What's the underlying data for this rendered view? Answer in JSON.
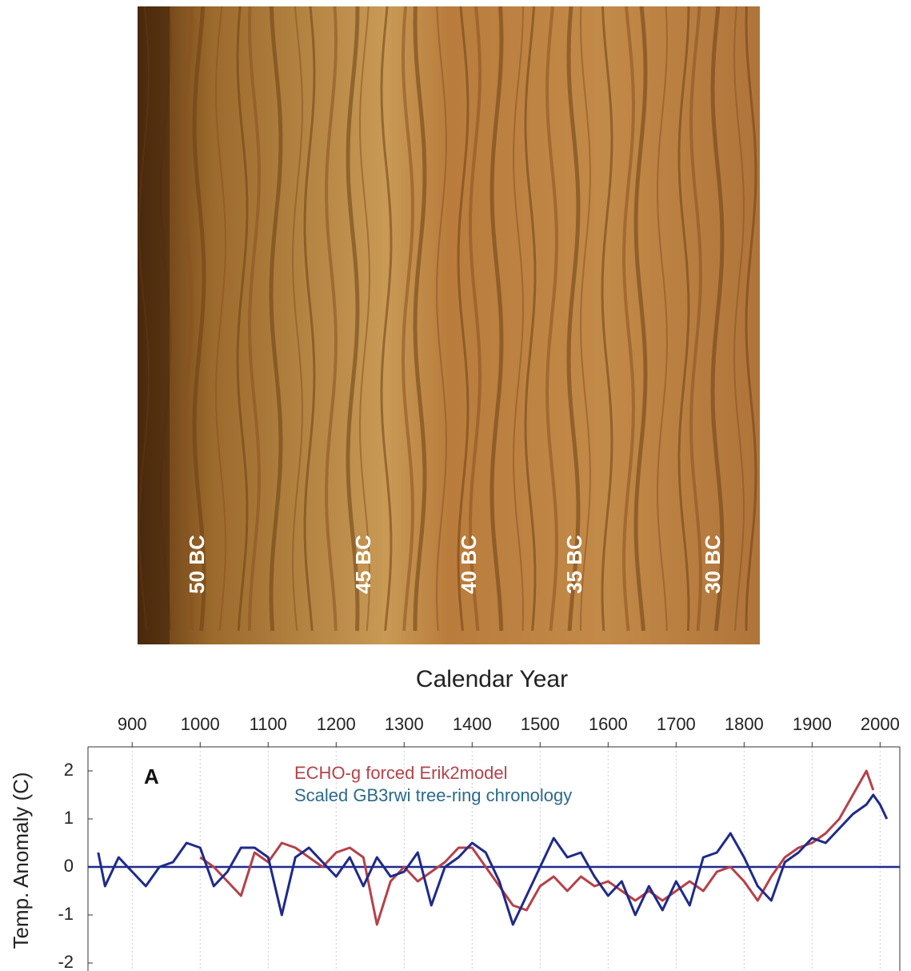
{
  "photo": {
    "labels": [
      "50 BC",
      "45 BC",
      "40 BC",
      "35 BC",
      "30 BC"
    ]
  },
  "chart_data": {
    "type": "line",
    "title": "Calendar Year",
    "y_label": "Temp. Anomaly (C)",
    "panel_label": "A",
    "x": [
      850,
      860,
      880,
      900,
      920,
      940,
      960,
      980,
      1000,
      1020,
      1040,
      1060,
      1080,
      1100,
      1120,
      1140,
      1160,
      1180,
      1200,
      1220,
      1240,
      1260,
      1280,
      1300,
      1320,
      1340,
      1360,
      1380,
      1400,
      1420,
      1440,
      1460,
      1480,
      1500,
      1520,
      1540,
      1560,
      1580,
      1600,
      1620,
      1640,
      1660,
      1680,
      1700,
      1720,
      1740,
      1760,
      1780,
      1800,
      1820,
      1840,
      1860,
      1880,
      1900,
      1920,
      1940,
      1960,
      1980,
      1990,
      2000,
      2010
    ],
    "series": [
      {
        "name": "ECHO-g forced Erik2model",
        "color": "#b5414a",
        "values": [
          null,
          null,
          null,
          null,
          null,
          null,
          null,
          null,
          0.2,
          0,
          -0.3,
          -0.6,
          0.3,
          0.1,
          0.5,
          0.4,
          0.2,
          0,
          0.3,
          0.4,
          0.2,
          -1.2,
          -0.3,
          0,
          -0.3,
          -0.1,
          0.1,
          0.4,
          0.4,
          0,
          -0.4,
          -0.8,
          -0.9,
          -0.4,
          -0.2,
          -0.5,
          -0.2,
          -0.4,
          -0.3,
          -0.5,
          -0.7,
          -0.5,
          -0.7,
          -0.5,
          -0.3,
          -0.5,
          -0.1,
          0,
          -0.3,
          -0.7,
          -0.2,
          0.2,
          0.4,
          0.5,
          0.7,
          1.0,
          1.5,
          2.0,
          1.6,
          null,
          null
        ]
      },
      {
        "name": "Scaled GB3rwi tree-ring chronology",
        "color": "#1f2a8a",
        "legend_color": "#2a6a8a",
        "values": [
          0.3,
          -0.4,
          0.2,
          -0.1,
          -0.4,
          0,
          0.1,
          0.5,
          0.4,
          -0.4,
          -0.1,
          0.4,
          0.4,
          0.2,
          -1.0,
          0.2,
          0.4,
          0.1,
          -0.2,
          0.2,
          -0.4,
          0.2,
          -0.2,
          -0.1,
          0.3,
          -0.8,
          0,
          0.2,
          0.5,
          0.3,
          -0.3,
          -1.2,
          -0.6,
          0,
          0.6,
          0.2,
          0.3,
          -0.2,
          -0.6,
          -0.3,
          -1.0,
          -0.4,
          -0.9,
          -0.3,
          -0.8,
          0.2,
          0.3,
          0.7,
          0.2,
          -0.4,
          -0.7,
          0.1,
          0.3,
          0.6,
          0.5,
          0.8,
          1.1,
          1.3,
          1.5,
          1.3,
          1.0
        ]
      }
    ],
    "reference_line": 0,
    "reference_color": "#1f2a8a",
    "xlim": [
      835,
      2029
    ],
    "ylim": [
      -2.2,
      2.5
    ],
    "xticks": [
      900,
      1000,
      1100,
      1200,
      1300,
      1400,
      1500,
      1600,
      1700,
      1800,
      1900,
      2000
    ],
    "yticks": [
      -2,
      -1,
      0,
      1,
      2
    ],
    "grid": true
  }
}
